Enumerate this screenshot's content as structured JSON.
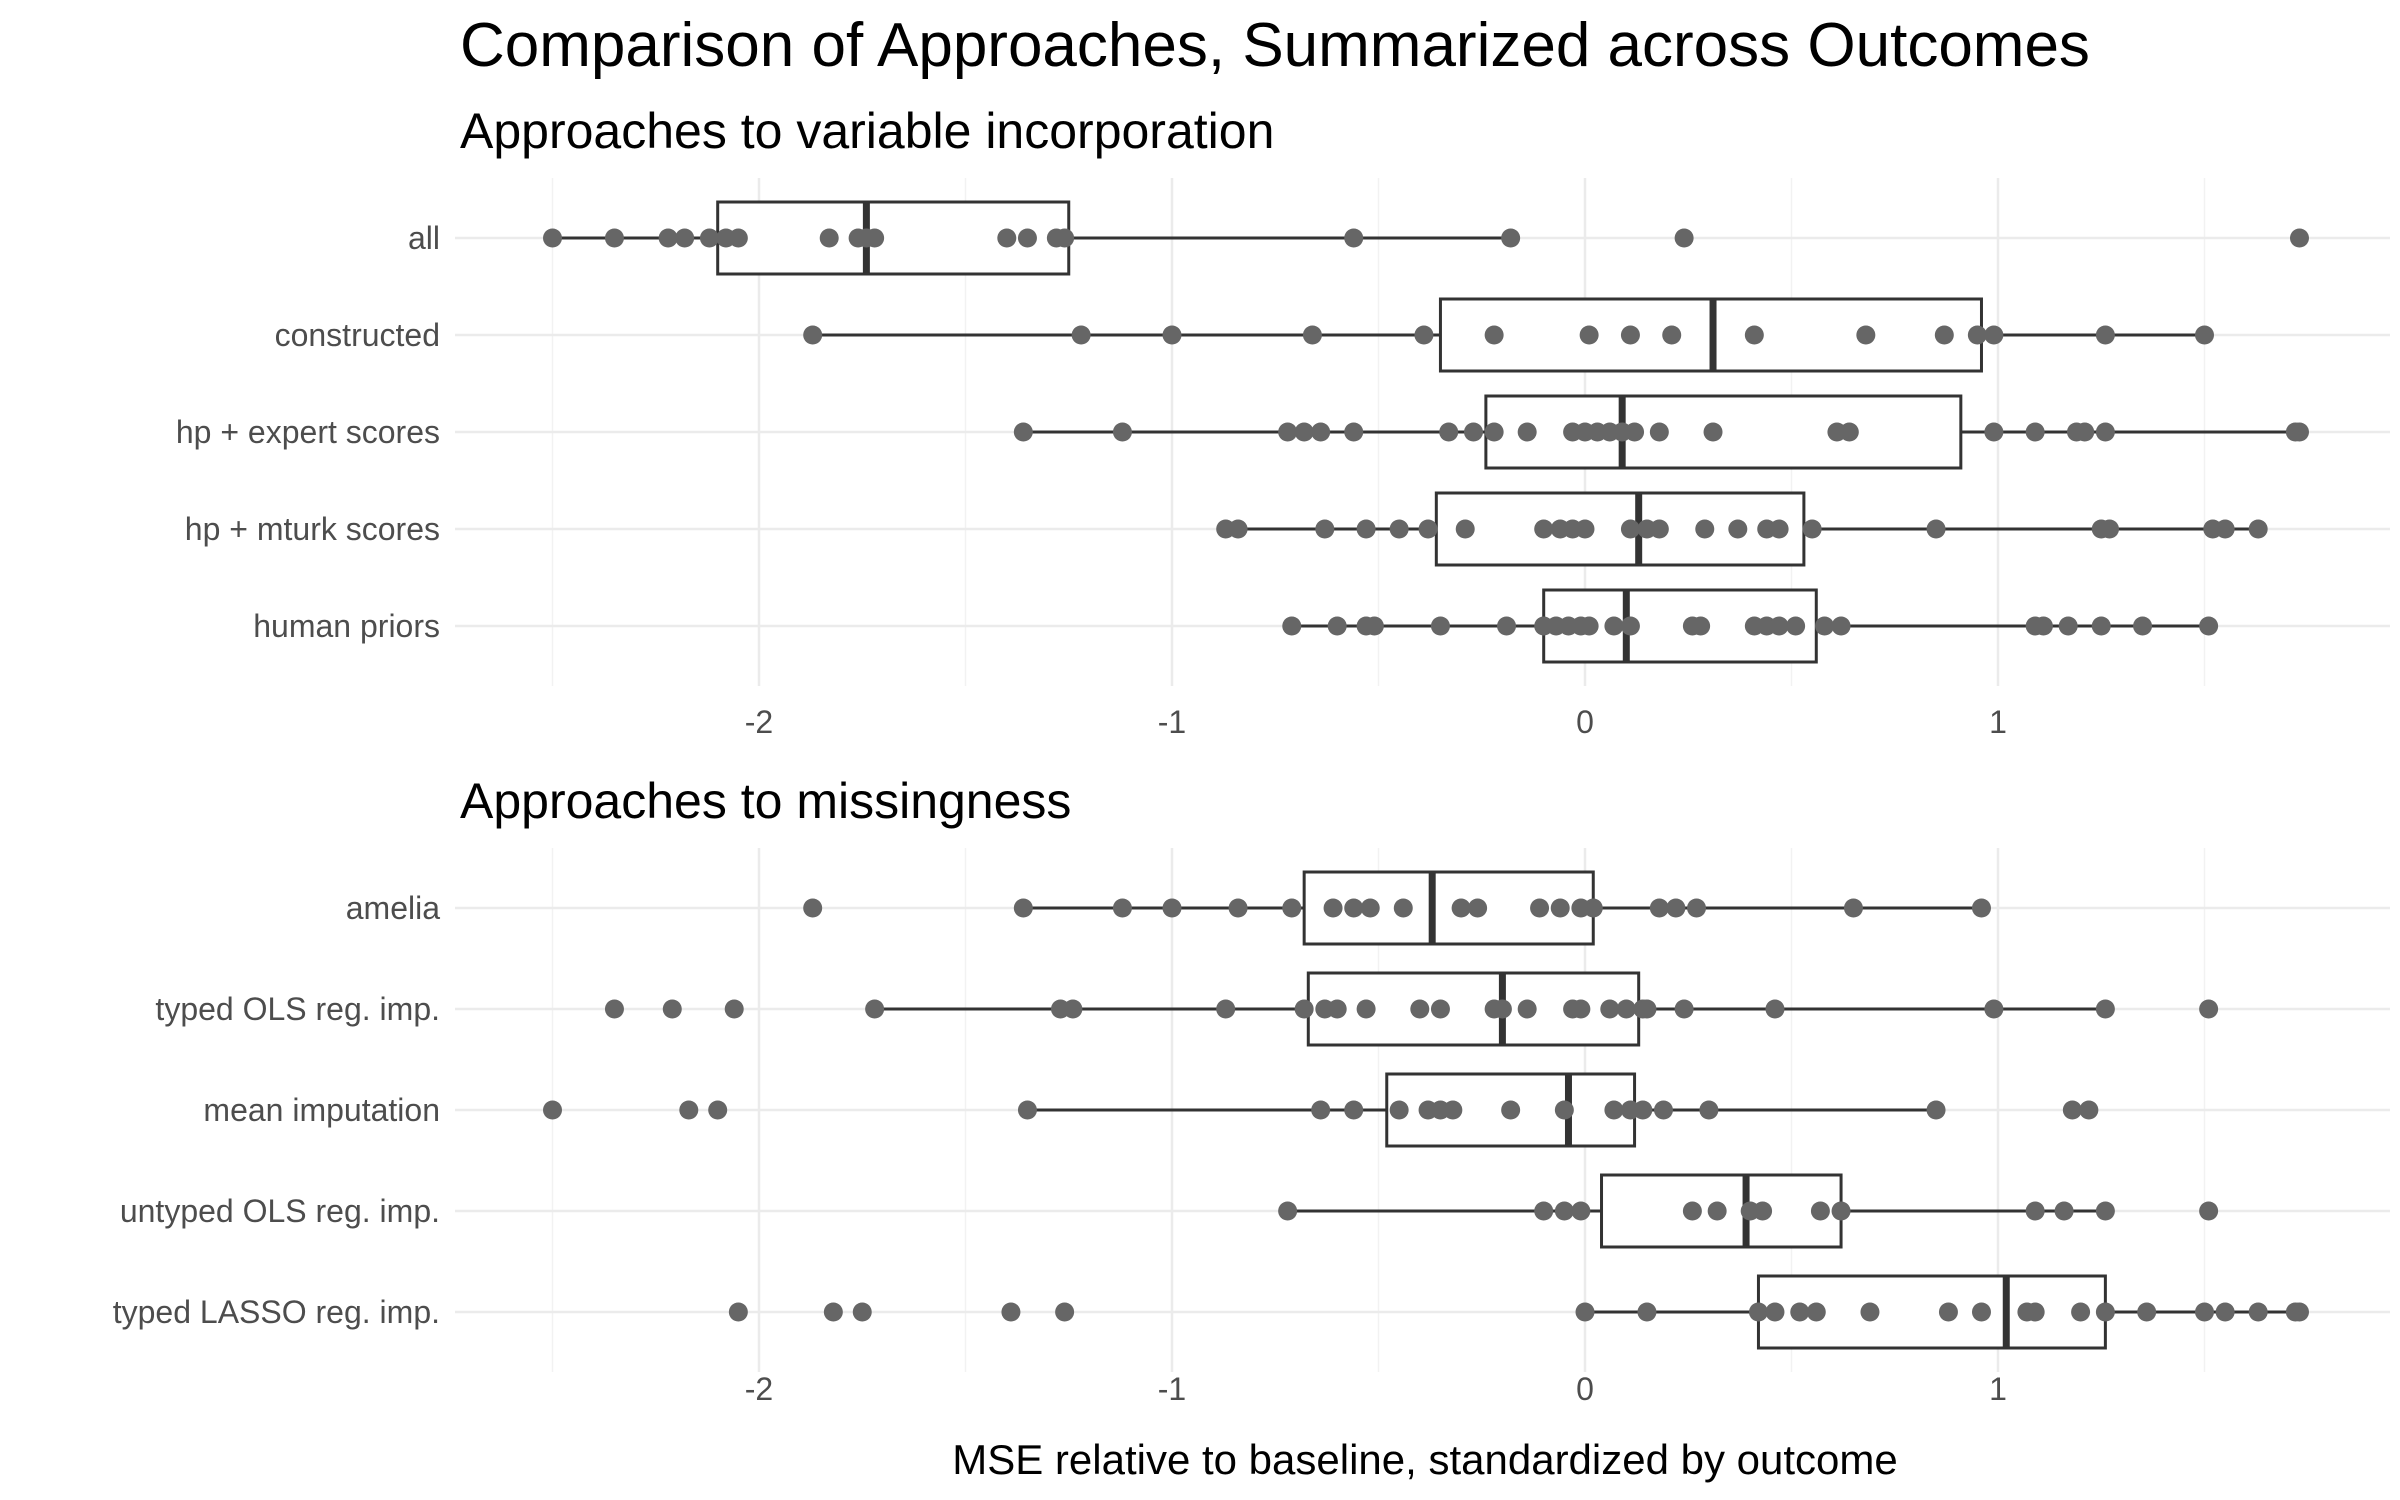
{
  "chart_data": [
    {
      "type": "boxplot",
      "orientation": "horizontal",
      "title": "Comparison of Approaches, Summarized across Outcomes",
      "subtitle": "Approaches to variable incorporation",
      "xlabel": "",
      "ylabel": "",
      "xlim": [
        -2.55,
        1.95
      ],
      "xticks": [
        -2,
        -1,
        0,
        1
      ],
      "xtick_labels": [
        "-2",
        "-1",
        "0",
        "1"
      ],
      "grid": true,
      "categories": [
        "all",
        "constructed",
        "hp + expert scores",
        "hp + mturk scores",
        "human priors"
      ],
      "boxes": [
        {
          "q1": -2.1,
          "median": -1.74,
          "q3": -1.25,
          "whisker_low": -2.5,
          "whisker_high": -0.18
        },
        {
          "q1": -0.35,
          "median": 0.31,
          "q3": 0.96,
          "whisker_low": -1.87,
          "whisker_high": 1.5
        },
        {
          "q1": -0.24,
          "median": 0.09,
          "q3": 0.91,
          "whisker_low": -1.36,
          "whisker_high": 1.73
        },
        {
          "q1": -0.36,
          "median": 0.13,
          "q3": 0.53,
          "whisker_low": -0.87,
          "whisker_high": 1.63
        },
        {
          "q1": -0.1,
          "median": 0.1,
          "q3": 0.56,
          "whisker_low": -0.71,
          "whisker_high": 1.51
        }
      ],
      "points": [
        [
          -2.5,
          -2.35,
          -2.22,
          -2.18,
          -2.12,
          -2.08,
          -2.05,
          -1.83,
          -1.76,
          -1.74,
          -1.72,
          -1.4,
          -1.35,
          -1.28,
          -1.26,
          -0.56,
          -0.18,
          0.24,
          1.73
        ],
        [
          -1.87,
          -1.22,
          -1.0,
          -0.66,
          -0.39,
          -0.22,
          0.01,
          0.11,
          0.21,
          0.41,
          0.68,
          0.87,
          0.95,
          0.99,
          1.26,
          1.5
        ],
        [
          -1.36,
          -1.12,
          -0.72,
          -0.68,
          -0.64,
          -0.56,
          -0.33,
          -0.27,
          -0.22,
          -0.14,
          -0.03,
          0.0,
          0.03,
          0.06,
          0.09,
          0.12,
          0.18,
          0.31,
          0.61,
          0.64,
          0.99,
          1.09,
          1.19,
          1.21,
          1.26,
          1.72,
          1.73
        ],
        [
          -0.87,
          -0.84,
          -0.63,
          -0.53,
          -0.45,
          -0.38,
          -0.29,
          -0.1,
          -0.06,
          -0.03,
          0.0,
          0.11,
          0.15,
          0.18,
          0.29,
          0.37,
          0.44,
          0.47,
          0.55,
          0.85,
          1.25,
          1.27,
          1.52,
          1.55,
          1.63
        ],
        [
          -0.71,
          -0.6,
          -0.53,
          -0.51,
          -0.35,
          -0.19,
          -0.1,
          -0.07,
          -0.04,
          -0.01,
          0.01,
          0.07,
          0.11,
          0.26,
          0.28,
          0.41,
          0.44,
          0.47,
          0.51,
          0.58,
          0.62,
          1.09,
          1.11,
          1.17,
          1.25,
          1.35,
          1.51
        ]
      ]
    },
    {
      "type": "boxplot",
      "orientation": "horizontal",
      "subtitle": "Approaches to missingness",
      "xlabel": "MSE relative to baseline, standardized by outcome",
      "ylabel": "",
      "xlim": [
        -2.55,
        1.95
      ],
      "xticks": [
        -2,
        -1,
        0,
        1
      ],
      "xtick_labels": [
        "-2",
        "-1",
        "0",
        "1"
      ],
      "grid": true,
      "categories": [
        "amelia",
        "typed OLS reg. imp.",
        "mean imputation",
        "untyped OLS reg. imp.",
        "typed LASSO reg. imp."
      ],
      "boxes": [
        {
          "q1": -0.68,
          "median": -0.37,
          "q3": 0.02,
          "whisker_low": -1.36,
          "whisker_high": 0.96
        },
        {
          "q1": -0.67,
          "median": -0.2,
          "q3": 0.13,
          "whisker_low": -1.72,
          "whisker_high": 1.26
        },
        {
          "q1": -0.48,
          "median": -0.04,
          "q3": 0.12,
          "whisker_low": -1.35,
          "whisker_high": 0.85
        },
        {
          "q1": 0.04,
          "median": 0.39,
          "q3": 0.62,
          "whisker_low": -0.72,
          "whisker_high": 1.26
        },
        {
          "q1": 0.42,
          "median": 1.02,
          "q3": 1.26,
          "whisker_low": 0.0,
          "whisker_high": 1.73
        }
      ],
      "points": [
        [
          -1.87,
          -1.36,
          -1.12,
          -1.0,
          -0.84,
          -0.71,
          -0.61,
          -0.56,
          -0.52,
          -0.44,
          -0.3,
          -0.26,
          -0.11,
          -0.06,
          -0.01,
          0.02,
          0.18,
          0.22,
          0.27,
          0.65,
          0.96
        ],
        [
          -2.35,
          -2.21,
          -2.06,
          -1.72,
          -1.27,
          -1.24,
          -0.87,
          -0.68,
          -0.63,
          -0.6,
          -0.53,
          -0.4,
          -0.35,
          -0.22,
          -0.2,
          -0.14,
          -0.03,
          -0.01,
          0.06,
          0.1,
          0.14,
          0.15,
          0.24,
          0.46,
          0.99,
          1.26,
          1.51
        ],
        [
          -2.5,
          -2.17,
          -2.1,
          -1.35,
          -0.64,
          -0.56,
          -0.45,
          -0.38,
          -0.35,
          -0.32,
          -0.18,
          -0.05,
          0.07,
          0.11,
          0.14,
          0.19,
          0.3,
          0.85,
          1.18,
          1.22
        ],
        [
          -0.72,
          -0.1,
          -0.05,
          -0.01,
          0.26,
          0.32,
          0.4,
          0.43,
          0.57,
          0.62,
          1.09,
          1.16,
          1.26,
          1.51
        ],
        [
          -2.05,
          -1.82,
          -1.75,
          -1.39,
          -1.26,
          0.0,
          0.15,
          0.42,
          0.46,
          0.52,
          0.56,
          0.69,
          0.88,
          0.96,
          1.07,
          1.09,
          1.2,
          1.26,
          1.36,
          1.5,
          1.55,
          1.63,
          1.72,
          1.73
        ]
      ]
    }
  ]
}
